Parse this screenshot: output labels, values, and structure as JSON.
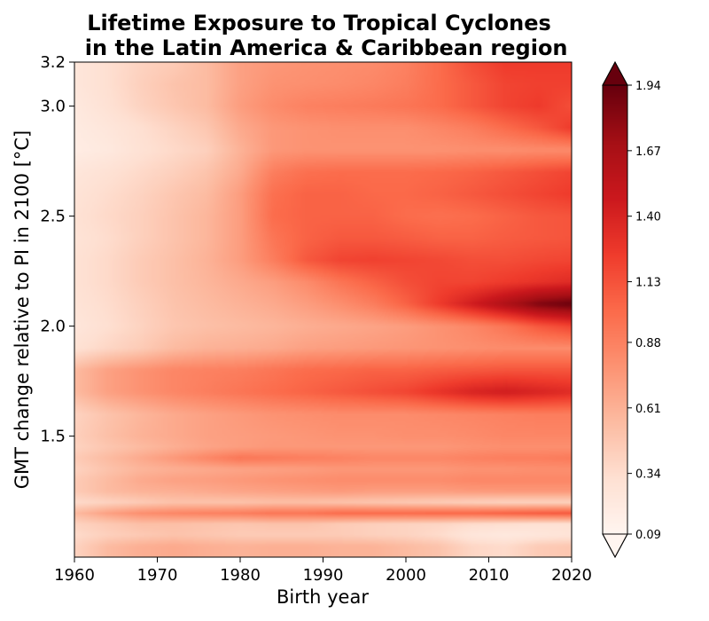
{
  "chart_data": {
    "type": "heatmap",
    "title_line1": "Lifetime Exposure to Tropical Cyclones",
    "title_line2": " in the Latin America & Caribbean region",
    "xlabel": "Birth year",
    "ylabel": "GMT change relative to PI in 2100 [°C]",
    "xlim": [
      1960,
      2020
    ],
    "ylim": [
      0.95,
      3.2
    ],
    "xticks": [
      "1960",
      "1970",
      "1980",
      "1990",
      "2000",
      "2010",
      "2020"
    ],
    "yticks": [
      "1.5",
      "2.0",
      "2.5",
      "3.0",
      "3.2"
    ],
    "colormap": "Reds",
    "colorbar": {
      "ticks": [
        "0.09",
        "0.34",
        "0.61",
        "0.88",
        "1.13",
        "1.40",
        "1.67",
        "1.94"
      ],
      "min": 0.09,
      "max": 1.94,
      "extend": "both"
    },
    "x": [
      1960,
      1964,
      1968,
      1972,
      1976,
      1980,
      1984,
      1988,
      1992,
      1996,
      2000,
      2004,
      2008,
      2012,
      2016,
      2020
    ],
    "y": [
      1.0,
      1.05,
      1.1,
      1.15,
      1.2,
      1.25,
      1.3,
      1.35,
      1.4,
      1.45,
      1.5,
      1.6,
      1.7,
      1.8,
      1.9,
      2.0,
      2.1,
      2.2,
      2.3,
      2.4,
      2.5,
      2.6,
      2.7,
      2.8,
      2.9,
      3.0,
      3.1,
      3.2
    ],
    "z": [
      [
        0.4,
        0.55,
        0.62,
        0.65,
        0.62,
        0.6,
        0.62,
        0.62,
        0.6,
        0.6,
        0.55,
        0.5,
        0.38,
        0.35,
        0.45,
        0.48
      ],
      [
        0.35,
        0.42,
        0.46,
        0.5,
        0.48,
        0.45,
        0.45,
        0.45,
        0.45,
        0.42,
        0.4,
        0.35,
        0.25,
        0.22,
        0.25,
        0.28
      ],
      [
        0.4,
        0.46,
        0.52,
        0.52,
        0.5,
        0.48,
        0.5,
        0.5,
        0.45,
        0.42,
        0.4,
        0.38,
        0.34,
        0.32,
        0.3,
        0.3
      ],
      [
        0.55,
        0.7,
        0.8,
        0.85,
        0.88,
        0.9,
        0.95,
        0.95,
        1.0,
        1.0,
        1.0,
        1.02,
        1.02,
        1.05,
        1.08,
        1.1
      ],
      [
        0.35,
        0.4,
        0.45,
        0.5,
        0.5,
        0.5,
        0.52,
        0.52,
        0.5,
        0.48,
        0.46,
        0.44,
        0.42,
        0.4,
        0.4,
        0.4
      ],
      [
        0.45,
        0.55,
        0.6,
        0.62,
        0.65,
        0.68,
        0.7,
        0.72,
        0.74,
        0.72,
        0.72,
        0.72,
        0.74,
        0.75,
        0.75,
        0.75
      ],
      [
        0.45,
        0.55,
        0.65,
        0.7,
        0.72,
        0.75,
        0.78,
        0.8,
        0.82,
        0.82,
        0.82,
        0.82,
        0.85,
        0.85,
        0.85,
        0.85
      ],
      [
        0.4,
        0.5,
        0.58,
        0.62,
        0.65,
        0.68,
        0.7,
        0.72,
        0.75,
        0.75,
        0.75,
        0.75,
        0.78,
        0.78,
        0.8,
        0.8
      ],
      [
        0.45,
        0.55,
        0.65,
        0.75,
        0.85,
        0.95,
        0.92,
        0.9,
        0.88,
        0.85,
        0.85,
        0.85,
        0.88,
        0.9,
        0.9,
        0.92
      ],
      [
        0.4,
        0.48,
        0.55,
        0.62,
        0.68,
        0.72,
        0.75,
        0.75,
        0.75,
        0.75,
        0.75,
        0.75,
        0.78,
        0.8,
        0.8,
        0.8
      ],
      [
        0.42,
        0.52,
        0.6,
        0.65,
        0.7,
        0.72,
        0.74,
        0.76,
        0.78,
        0.78,
        0.8,
        0.8,
        0.82,
        0.85,
        0.85,
        0.85
      ],
      [
        0.4,
        0.5,
        0.58,
        0.65,
        0.7,
        0.74,
        0.78,
        0.8,
        0.82,
        0.82,
        0.82,
        0.84,
        0.86,
        0.88,
        0.9,
        0.9
      ],
      [
        0.55,
        0.7,
        0.78,
        0.85,
        0.9,
        0.95,
        1.0,
        1.05,
        1.1,
        1.15,
        1.2,
        1.3,
        1.4,
        1.45,
        1.4,
        1.35
      ],
      [
        0.55,
        0.7,
        0.78,
        0.85,
        0.88,
        0.9,
        0.95,
        1.0,
        1.02,
        1.05,
        1.05,
        1.08,
        1.1,
        1.12,
        1.12,
        1.12
      ],
      [
        0.3,
        0.38,
        0.45,
        0.55,
        0.6,
        0.62,
        0.65,
        0.7,
        0.72,
        0.74,
        0.76,
        0.78,
        0.8,
        0.82,
        0.82,
        0.82
      ],
      [
        0.25,
        0.32,
        0.4,
        0.48,
        0.52,
        0.55,
        0.58,
        0.62,
        0.65,
        0.68,
        0.72,
        0.78,
        0.85,
        0.95,
        1.1,
        1.2
      ],
      [
        0.28,
        0.34,
        0.42,
        0.5,
        0.55,
        0.6,
        0.65,
        0.72,
        0.8,
        0.9,
        1.05,
        1.25,
        1.45,
        1.65,
        1.85,
        1.94
      ],
      [
        0.3,
        0.36,
        0.45,
        0.52,
        0.58,
        0.65,
        0.72,
        0.82,
        0.95,
        1.05,
        1.15,
        1.2,
        1.2,
        1.25,
        1.3,
        1.35
      ],
      [
        0.3,
        0.36,
        0.45,
        0.52,
        0.6,
        0.72,
        0.9,
        1.1,
        1.2,
        1.22,
        1.2,
        1.18,
        1.15,
        1.15,
        1.18,
        1.2
      ],
      [
        0.28,
        0.34,
        0.42,
        0.5,
        0.58,
        0.72,
        0.95,
        1.05,
        1.1,
        1.1,
        1.08,
        1.05,
        1.05,
        1.08,
        1.1,
        1.12
      ],
      [
        0.3,
        0.36,
        0.42,
        0.5,
        0.58,
        0.72,
        1.0,
        1.05,
        1.05,
        1.05,
        1.0,
        0.98,
        1.0,
        1.05,
        1.1,
        1.12
      ],
      [
        0.28,
        0.34,
        0.4,
        0.48,
        0.55,
        0.72,
        0.98,
        1.05,
        1.05,
        1.02,
        1.02,
        1.05,
        1.1,
        1.15,
        1.2,
        1.25
      ],
      [
        0.25,
        0.3,
        0.36,
        0.42,
        0.5,
        0.65,
        0.9,
        0.98,
        1.0,
        1.0,
        1.0,
        1.02,
        1.05,
        1.1,
        1.15,
        1.2
      ],
      [
        0.18,
        0.22,
        0.3,
        0.36,
        0.42,
        0.6,
        0.75,
        0.78,
        0.78,
        0.78,
        0.78,
        0.78,
        0.8,
        0.8,
        0.82,
        0.82
      ],
      [
        0.2,
        0.25,
        0.32,
        0.4,
        0.48,
        0.65,
        0.75,
        0.78,
        0.8,
        0.8,
        0.8,
        0.85,
        0.9,
        1.0,
        1.1,
        1.25
      ],
      [
        0.22,
        0.3,
        0.4,
        0.48,
        0.55,
        0.72,
        0.82,
        0.88,
        0.9,
        0.92,
        0.95,
        1.0,
        1.1,
        1.2,
        1.25,
        1.15
      ],
      [
        0.25,
        0.32,
        0.42,
        0.5,
        0.55,
        0.7,
        0.78,
        0.8,
        0.82,
        0.85,
        0.9,
        1.0,
        1.1,
        1.2,
        1.22,
        1.22
      ],
      [
        0.25,
        0.32,
        0.4,
        0.45,
        0.55,
        0.7,
        0.75,
        0.78,
        0.8,
        0.82,
        0.88,
        1.0,
        1.15,
        1.25,
        1.25,
        1.25
      ]
    ]
  }
}
